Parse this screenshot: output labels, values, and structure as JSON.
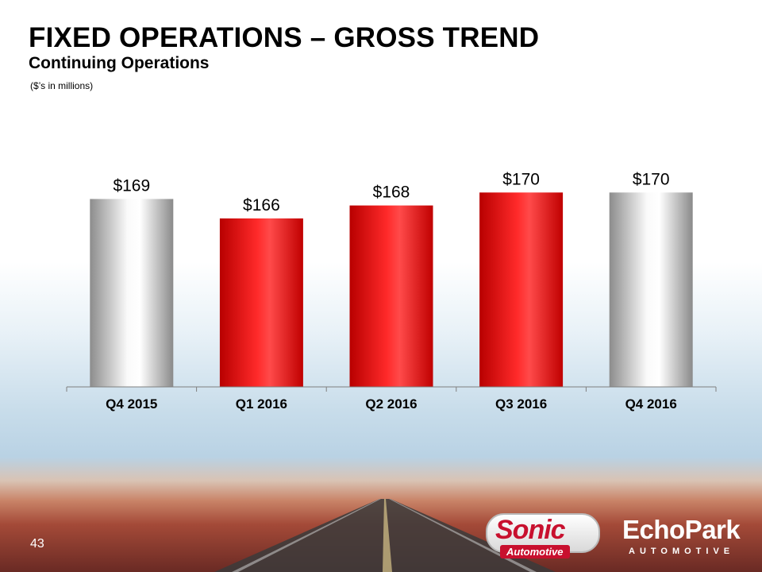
{
  "header": {
    "title": "FIXED OPERATIONS – GROSS TREND",
    "subtitle": "Continuing Operations",
    "units_note": "($’s in millions)"
  },
  "footer": {
    "page_number": "43",
    "sonic_logo": {
      "wordmark": "Sonic",
      "sub": "Automotive"
    },
    "echopark_logo": {
      "wordmark": "EchoPark",
      "sub": "AUTOMOTIVE"
    }
  },
  "chart_data": {
    "type": "bar",
    "categories": [
      "Q4 2015",
      "Q1 2016",
      "Q2 2016",
      "Q3 2016",
      "Q4 2016"
    ],
    "values": [
      169,
      166,
      168,
      170,
      170
    ],
    "data_labels": [
      "$169",
      "$166",
      "$168",
      "$170",
      "$170"
    ],
    "bar_colors": [
      "silver",
      "red",
      "red",
      "red",
      "silver"
    ],
    "colors": {
      "red": "#e00000",
      "silver": "#d8d8d8"
    },
    "ylim": [
      140,
      172
    ],
    "grid": false,
    "legend": "none"
  }
}
